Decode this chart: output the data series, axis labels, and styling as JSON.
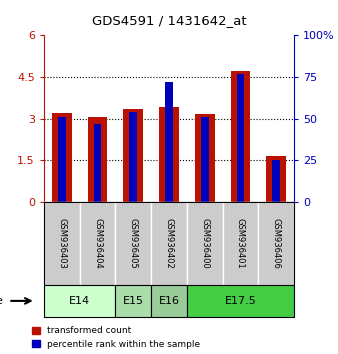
{
  "title": "GDS4591 / 1431642_at",
  "samples": [
    "GSM936403",
    "GSM936404",
    "GSM936405",
    "GSM936402",
    "GSM936400",
    "GSM936401",
    "GSM936406"
  ],
  "transformed_count": [
    3.2,
    3.05,
    3.35,
    3.4,
    3.15,
    4.7,
    1.65
  ],
  "percentile_rank_pct": [
    51,
    47,
    54,
    72,
    51,
    77,
    25
  ],
  "age_groups": [
    {
      "label": "E14",
      "start": 0,
      "end": 2,
      "color": "#ccffcc"
    },
    {
      "label": "E15",
      "start": 2,
      "end": 3,
      "color": "#aaddaa"
    },
    {
      "label": "E16",
      "start": 3,
      "end": 4,
      "color": "#99cc99"
    },
    {
      "label": "E17.5",
      "start": 4,
      "end": 7,
      "color": "#44cc44"
    }
  ],
  "ylim_left": [
    0,
    6
  ],
  "ylim_right": [
    0,
    100
  ],
  "yticks_left": [
    0,
    1.5,
    3,
    4.5,
    6
  ],
  "yticks_right": [
    0,
    25,
    50,
    75,
    100
  ],
  "bar_color_red": "#bb1100",
  "bar_color_blue": "#0000bb",
  "bar_width": 0.55,
  "blue_bar_width": 0.22,
  "sample_box_color": "#cccccc",
  "age_e14_color": "#ccffcc",
  "age_e15_color": "#aaddaa",
  "age_e16_color": "#99cc99",
  "age_e175_color": "#44cc44"
}
